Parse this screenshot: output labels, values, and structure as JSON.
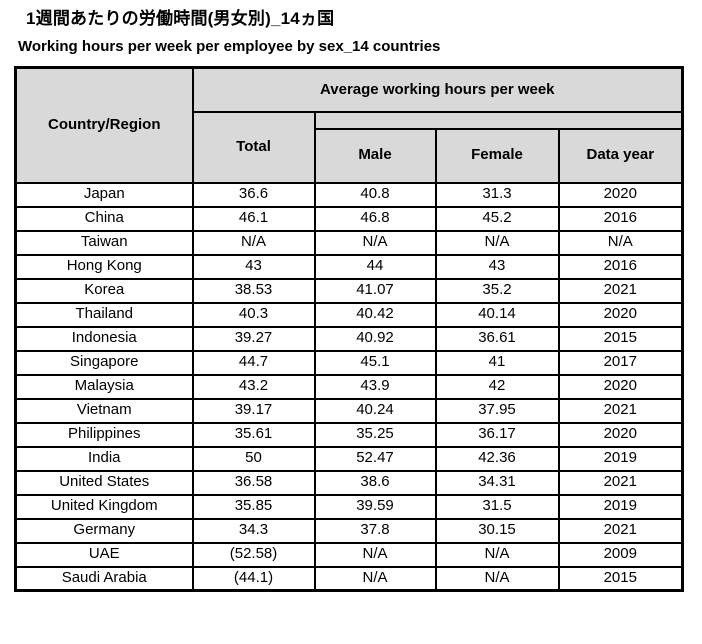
{
  "chart_data": {
    "type": "table",
    "title": "1週間あたりの労働時間(男女別)_14ヵ国",
    "subtitle": "Working hours per week per employee by sex_14 countries",
    "group_header": "Average working hours per week",
    "columns": [
      "Country/Region",
      "Total",
      "Male",
      "Female",
      "Data year"
    ],
    "rows": [
      [
        "Japan",
        "36.6",
        "40.8",
        "31.3",
        "2020"
      ],
      [
        "China",
        "46.1",
        "46.8",
        "45.2",
        "2016"
      ],
      [
        "Taiwan",
        "N/A",
        "N/A",
        "N/A",
        "N/A"
      ],
      [
        "Hong Kong",
        "43",
        "44",
        "43",
        "2016"
      ],
      [
        "Korea",
        "38.53",
        "41.07",
        "35.2",
        "2021"
      ],
      [
        "Thailand",
        "40.3",
        "40.42",
        "40.14",
        "2020"
      ],
      [
        "Indonesia",
        "39.27",
        "40.92",
        "36.61",
        "2015"
      ],
      [
        "Singapore",
        "44.7",
        "45.1",
        "41",
        "2017"
      ],
      [
        "Malaysia",
        "43.2",
        "43.9",
        "42",
        "2020"
      ],
      [
        "Vietnam",
        "39.17",
        "40.24",
        "37.95",
        "2021"
      ],
      [
        "Philippines",
        "35.61",
        "35.25",
        "36.17",
        "2020"
      ],
      [
        "India",
        "50",
        "52.47",
        "42.36",
        "2019"
      ],
      [
        "United States",
        "36.58",
        "38.6",
        "34.31",
        "2021"
      ],
      [
        "United Kingdom",
        "35.85",
        "39.59",
        "31.5",
        "2019"
      ],
      [
        "Germany",
        "34.3",
        "37.8",
        "30.15",
        "2021"
      ],
      [
        "UAE",
        "(52.58)",
        "N/A",
        "N/A",
        "2009"
      ],
      [
        "Saudi Arabia",
        "(44.1)",
        "N/A",
        "N/A",
        "2015"
      ]
    ],
    "style": {
      "header_bg": "#d9d9d9",
      "border_color": "#000000",
      "text_color": "#000000"
    }
  }
}
